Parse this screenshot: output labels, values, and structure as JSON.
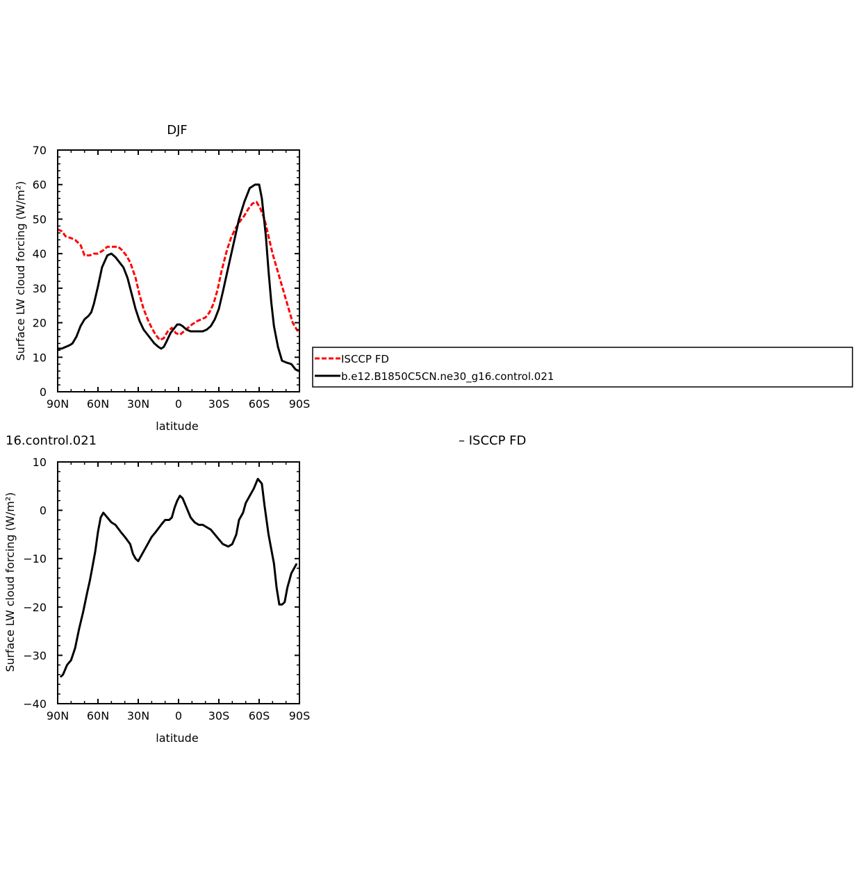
{
  "colors": {
    "observation": "#ff0000",
    "model": "#000000",
    "axis": "#000000"
  },
  "chart_data": [
    {
      "type": "line",
      "title": "DJF",
      "xlabel": "latitude",
      "ylabel": "Surface LW cloud forcing (W/m²)",
      "xlim": [
        90,
        -90
      ],
      "ylim": [
        0,
        70
      ],
      "xticks": [
        90,
        60,
        30,
        0,
        -30,
        -60,
        -90
      ],
      "xtick_labels": [
        "90N",
        "60N",
        "30N",
        "0",
        "30S",
        "60S",
        "90S"
      ],
      "yticks": [
        0,
        10,
        20,
        30,
        40,
        50,
        60,
        70
      ],
      "ytick_labels": [
        "0",
        "10",
        "20",
        "30",
        "40",
        "50",
        "60",
        "70"
      ],
      "legend": {
        "placement": "right",
        "entries": [
          "ISCCP FD",
          "b.e12.B1850C5CN.ne30_g16.control.021"
        ]
      },
      "series": [
        {
          "name": "ISCCP FD",
          "color": "#ff0000",
          "dash": "dashed",
          "x": [
            90,
            87,
            84,
            80,
            77,
            73,
            70,
            66,
            63,
            60,
            56,
            53,
            50,
            45,
            42,
            39,
            36,
            32,
            29,
            26,
            23,
            20,
            17,
            14,
            11,
            8,
            5,
            2,
            -1,
            -4,
            -7,
            -10,
            -14,
            -17,
            -20,
            -23,
            -26,
            -29,
            -32,
            -36,
            -39,
            -42,
            -45,
            -49,
            -52,
            -55,
            -58,
            -61,
            -64,
            -67,
            -70,
            -73,
            -76,
            -79,
            -82,
            -85,
            -88,
            -90
          ],
          "y": [
            47,
            46.5,
            45,
            44.5,
            44,
            42.5,
            39.5,
            39.5,
            40,
            40,
            41,
            42,
            42,
            42,
            41,
            39.5,
            37.5,
            33,
            28,
            24,
            21,
            18.5,
            16.5,
            15,
            15.5,
            17.5,
            18.5,
            17,
            16.5,
            17.5,
            18.5,
            19.5,
            20.5,
            21,
            21.5,
            23,
            25.5,
            29.5,
            35,
            41,
            44.5,
            47,
            49,
            51,
            53,
            54.5,
            55,
            53,
            50,
            45,
            40,
            36,
            32,
            28,
            24,
            20,
            18,
            17
          ]
        },
        {
          "name": "b.e12.B1850C5CN.ne30_g16.control.021",
          "color": "#000000",
          "dash": "solid",
          "x": [
            90,
            87,
            84,
            81,
            79,
            76,
            73,
            70,
            67,
            65,
            63,
            60,
            57,
            53,
            50,
            47,
            44,
            41,
            38,
            35,
            32,
            29,
            26,
            22,
            18,
            15,
            13,
            11,
            9,
            6,
            3,
            1,
            -1,
            -3,
            -6,
            -9,
            -12,
            -15,
            -18,
            -21,
            -24,
            -27,
            -30,
            -33,
            -37,
            -41,
            -45,
            -49,
            -53,
            -57,
            -60,
            -62,
            -65,
            -67,
            -69,
            -71,
            -74,
            -77,
            -80,
            -84,
            -87,
            -90
          ],
          "y": [
            12.5,
            12.5,
            13,
            13.5,
            14,
            16,
            19,
            21,
            22,
            23,
            25.5,
            30.5,
            36,
            39.5,
            40,
            39,
            37.5,
            36,
            33,
            28.5,
            24,
            20.5,
            18,
            16,
            14,
            13,
            12.5,
            13,
            14.5,
            17,
            18.5,
            19.5,
            19.5,
            19,
            18,
            17.5,
            17.5,
            17.5,
            17.5,
            18,
            19,
            21,
            24,
            29,
            36,
            43,
            50,
            55,
            59,
            60,
            60,
            56,
            45,
            35,
            26,
            19,
            13,
            9,
            8.5,
            8,
            6.5,
            6
          ]
        }
      ]
    },
    {
      "type": "line",
      "title": "16.control.021",
      "title_right": "– ISCCP FD",
      "xlabel": "latitude",
      "ylabel": "Surface LW cloud forcing (W/m²)",
      "xlim": [
        90,
        -90
      ],
      "ylim": [
        -40,
        10
      ],
      "xticks": [
        90,
        60,
        30,
        0,
        -30,
        -60,
        -90
      ],
      "xtick_labels": [
        "90N",
        "60N",
        "30N",
        "0",
        "30S",
        "60S",
        "90S"
      ],
      "yticks": [
        -40,
        -30,
        -20,
        -10,
        0,
        10
      ],
      "ytick_labels": [
        "−40",
        "−30",
        "−20",
        "−10",
        "0",
        "10"
      ],
      "series": [
        {
          "name": "",
          "color": "#000000",
          "dash": "solid",
          "x": [
            88,
            86,
            83,
            80,
            77,
            74,
            71,
            68,
            66,
            64,
            62,
            60,
            58,
            56,
            53,
            50,
            47,
            43,
            40,
            36,
            34,
            32,
            30,
            27,
            24,
            20,
            17,
            13,
            10,
            7,
            5,
            3,
            1,
            -1,
            -3,
            -6,
            -9,
            -12,
            -15,
            -18,
            -21,
            -24,
            -27,
            -30,
            -33,
            -37,
            -40,
            -43,
            -45,
            -48,
            -50,
            -53,
            -56,
            -59,
            -62,
            -64,
            -67,
            -69,
            -71,
            -73,
            -75,
            -77,
            -79,
            -81,
            -84,
            -86,
            -88
          ],
          "y": [
            -34.5,
            -34,
            -32,
            -31,
            -28.5,
            -24.5,
            -21,
            -17,
            -14.5,
            -11.5,
            -8.5,
            -4.5,
            -1.5,
            -0.5,
            -1.5,
            -2.5,
            -3,
            -4.5,
            -5.5,
            -7,
            -9,
            -10,
            -10.5,
            -9,
            -7.5,
            -5.5,
            -4.5,
            -3,
            -2,
            -2,
            -1.5,
            0.5,
            2,
            3,
            2.5,
            0.5,
            -1.5,
            -2.5,
            -3,
            -3,
            -3.5,
            -4,
            -5,
            -6,
            -7,
            -7.5,
            -7,
            -5,
            -2,
            -0.5,
            1.5,
            3,
            4.5,
            6.5,
            5.5,
            1,
            -5,
            -8,
            -11,
            -16,
            -19.5,
            -19.5,
            -19,
            -16,
            -13,
            -12,
            -11
          ]
        }
      ]
    }
  ]
}
